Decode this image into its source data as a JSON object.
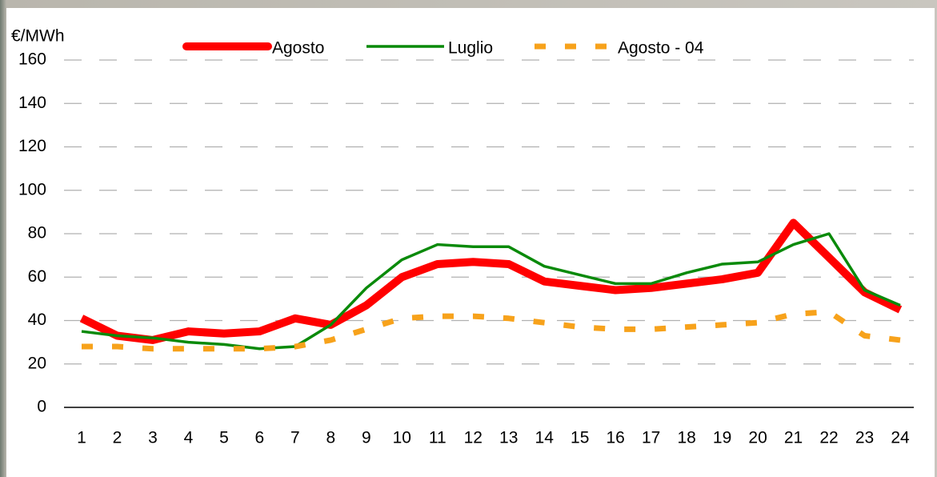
{
  "chart_data": {
    "type": "line",
    "y_label": "€/MWh",
    "categories": [
      "1",
      "2",
      "3",
      "4",
      "5",
      "6",
      "7",
      "8",
      "9",
      "10",
      "11",
      "12",
      "13",
      "14",
      "15",
      "16",
      "17",
      "18",
      "19",
      "20",
      "21",
      "22",
      "23",
      "24"
    ],
    "series": [
      {
        "name": "Agosto",
        "color": "#ff0000",
        "values": [
          41,
          33,
          31,
          35,
          34,
          35,
          41,
          38,
          47,
          60,
          66,
          67,
          66,
          58,
          56,
          54,
          55,
          57,
          59,
          62,
          85,
          69,
          53,
          45
        ]
      },
      {
        "name": "Luglio",
        "color": "#0a8a0a",
        "values": [
          35,
          33,
          32,
          30,
          29,
          27,
          28,
          38,
          55,
          68,
          75,
          74,
          74,
          65,
          61,
          57,
          57,
          62,
          66,
          67,
          75,
          80,
          54,
          47
        ]
      },
      {
        "name": "Agosto - 04",
        "color": "#f7a21b",
        "values": [
          28,
          28,
          27,
          27,
          27,
          27,
          28,
          31,
          36,
          41,
          42,
          42,
          41,
          39,
          37,
          36,
          36,
          37,
          38,
          39,
          43,
          44,
          33,
          31
        ]
      }
    ],
    "ylim": [
      0,
      160
    ],
    "yticks": [
      0,
      20,
      40,
      60,
      80,
      100,
      120,
      140,
      160
    ],
    "grid": true,
    "legend": "top"
  }
}
